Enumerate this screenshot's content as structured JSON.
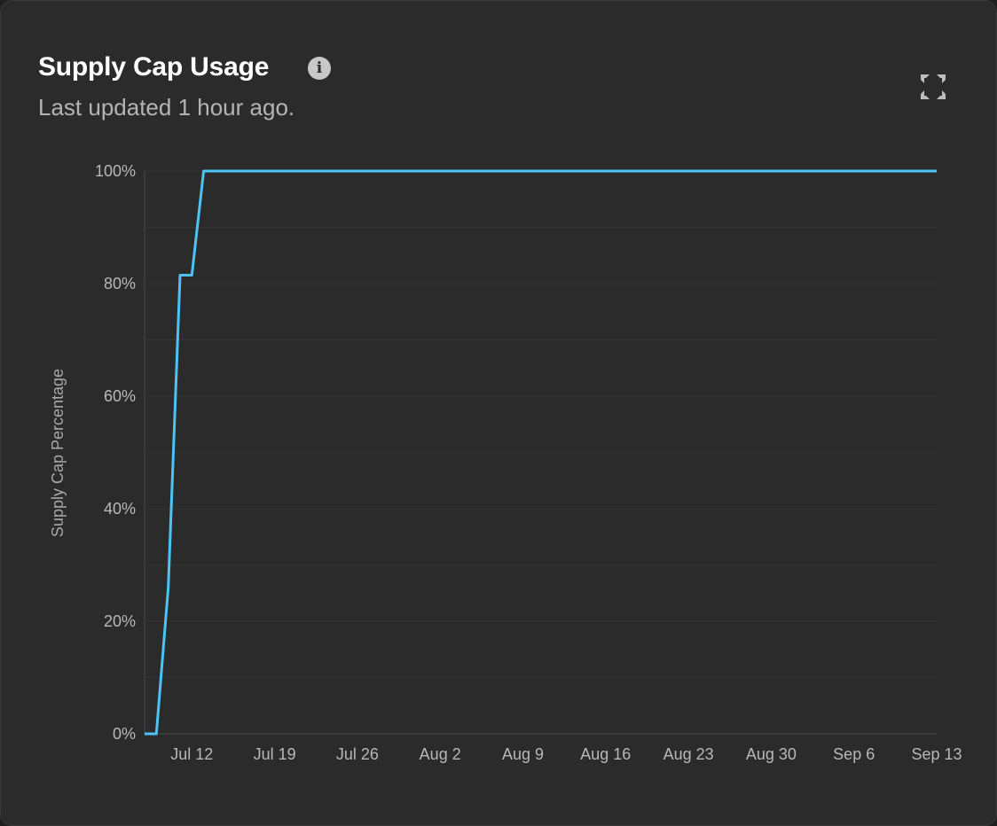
{
  "header": {
    "title": "Supply Cap Usage",
    "subtitle": "Last updated 1 hour ago.",
    "info_icon": "info-icon",
    "expand_icon": "expand-icon"
  },
  "colors": {
    "background": "#2b2b2b",
    "line": "#4cc3f5",
    "grid": "#3a3a3a"
  },
  "chart_data": {
    "type": "line",
    "title": "",
    "xlabel": "",
    "ylabel": "Supply Cap Percentage",
    "x_ticks": [
      "Jul 12",
      "Jul 19",
      "Jul 26",
      "Aug 2",
      "Aug 9",
      "Aug 16",
      "Aug 23",
      "Aug 30",
      "Sep 6",
      "Sep 13"
    ],
    "y_ticks": [
      "0%",
      "20%",
      "40%",
      "60%",
      "80%",
      "100%"
    ],
    "ylim": [
      0,
      100
    ],
    "xlim": [
      "2024-07-08",
      "2024-09-13"
    ],
    "grid": true,
    "series": [
      {
        "x": [
          "2024-07-08",
          "2024-07-09",
          "2024-07-10",
          "2024-07-11",
          "2024-07-12",
          "2024-07-13",
          "2024-09-13"
        ],
        "values": [
          0,
          0,
          26,
          81.5,
          81.5,
          100,
          100
        ]
      }
    ]
  }
}
